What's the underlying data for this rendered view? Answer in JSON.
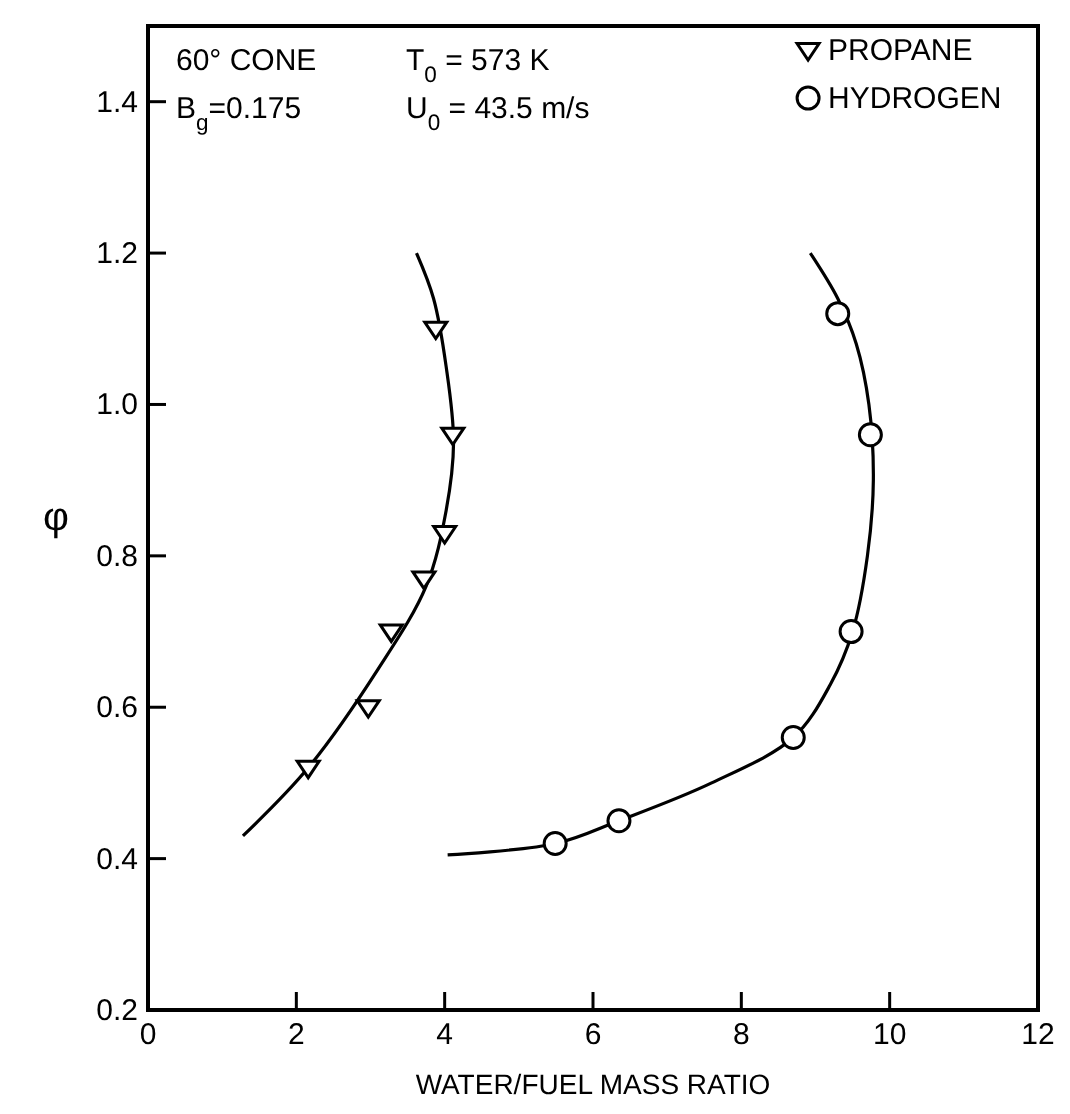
{
  "chart_data": {
    "type": "scatter",
    "xlabel": "WATER/FUEL MASS RATIO",
    "ylabel": "φ",
    "xlim": [
      0,
      12
    ],
    "xticks": [
      0,
      2,
      4,
      6,
      8,
      10,
      12
    ],
    "ylim": [
      0.2,
      1.5
    ],
    "yticks": [
      {
        "value": 0.2,
        "label": "0.2"
      },
      {
        "value": 0.4,
        "label": "0.4"
      },
      {
        "value": 0.6,
        "label": "0.6"
      },
      {
        "value": 0.8,
        "label": "0.8"
      },
      {
        "value": 1,
        "label": "1.0"
      },
      {
        "value": 1.2,
        "label": "1.2"
      },
      {
        "value": 1.4,
        "label": "1.4"
      }
    ],
    "grid": false,
    "legend": "top right",
    "annotations": [
      "60° CONE",
      "B$_{g}$=0.175",
      "T$_{0}$ = 573 K",
      "U$_{0}$ = 43.5 m/s"
    ],
    "series": [
      {
        "name": "PROPANE",
        "marker": "triangle",
        "color": "#000000",
        "x": [
          2.16,
          2.97,
          3.28,
          3.72,
          4.0,
          4.11,
          3.88
        ],
        "values": [
          0.52,
          0.6,
          0.7,
          0.77,
          0.83,
          0.96,
          1.1
        ]
      },
      {
        "name": "HYDROGEN",
        "marker": "circle",
        "color": "#000000",
        "x": [
          5.49,
          6.35,
          8.7,
          9.48,
          9.74,
          9.3
        ],
        "values": [
          0.42,
          0.45,
          0.56,
          0.7,
          0.96,
          1.12
        ]
      },
      {
        "type": "line",
        "marker": "none",
        "line_style": "solid",
        "color": "#000000",
        "x": [
          1.28,
          2.16,
          3.1,
          3.75,
          4.02,
          4.12,
          4.02,
          3.85,
          3.62
        ],
        "values": [
          0.43,
          0.52,
          0.65,
          0.76,
          0.86,
          0.95,
          1.05,
          1.14,
          1.2
        ]
      },
      {
        "type": "line",
        "marker": "none",
        "line_style": "solid",
        "color": "#000000",
        "x": [
          4.04,
          5.5,
          6.35,
          7.6,
          8.7,
          9.2,
          9.5,
          9.7,
          9.78,
          9.72,
          9.55,
          9.3,
          8.93
        ],
        "values": [
          0.405,
          0.42,
          0.45,
          0.5,
          0.56,
          0.63,
          0.7,
          0.8,
          0.9,
          1.0,
          1.08,
          1.14,
          1.2
        ]
      }
    ]
  }
}
